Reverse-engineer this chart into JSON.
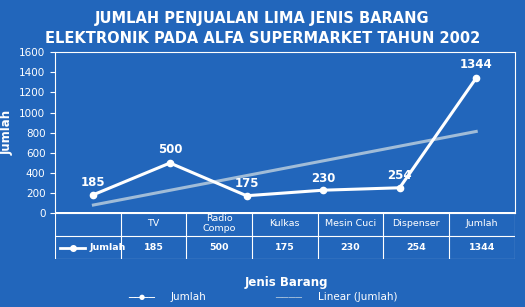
{
  "title": "JUMLAH PENJUALAN LIMA JENIS BARANG\nELEKTRONIK PADA ALFA SUPERMARKET TAHUN 2002",
  "categories": [
    "TV",
    "Radio\nCompo",
    "Kulkas",
    "Mesin Cuci",
    "Dispenser",
    "Jumlah"
  ],
  "values": [
    185,
    500,
    175,
    230,
    254,
    1344
  ],
  "ylabel": "Jumlah",
  "xlabel": "Jenis Barang",
  "ylim": [
    0,
    1600
  ],
  "yticks": [
    0,
    200,
    400,
    600,
    800,
    1000,
    1200,
    1400,
    1600
  ],
  "bg_color": "#2266bb",
  "line_color": "#ffffff",
  "linear_color": "#a0bcd8",
  "text_color": "#ffffff",
  "table_row_label": "Jumlah",
  "legend_jumlah": "Jumlah",
  "legend_linear": "Linear (Jumlah)",
  "title_fontsize": 10.5,
  "label_fontsize": 8.5,
  "tick_fontsize": 7.5
}
